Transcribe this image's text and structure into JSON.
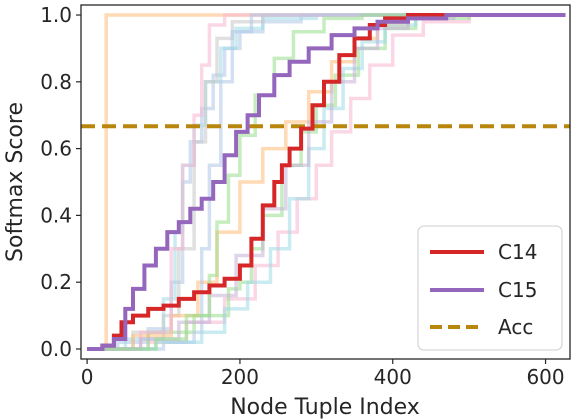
{
  "chart_data": {
    "type": "line",
    "xlabel": "Node Tuple Index",
    "ylabel": "Softmax Score",
    "xlim": [
      -8,
      632
    ],
    "ylim": [
      -0.03,
      1.03
    ],
    "xticks": [
      "0",
      "200",
      "400",
      "600"
    ],
    "xtick_values": [
      0,
      200,
      400,
      600
    ],
    "yticks": [
      "0.0",
      "0.2",
      "0.4",
      "0.6",
      "0.8",
      "1.0"
    ],
    "ytick_values": [
      0,
      0.2,
      0.4,
      0.6,
      0.8,
      1.0
    ],
    "legend_position": "lower-right",
    "accuracy_line": {
      "name": "Acc",
      "y": 0.667,
      "color": "#b8860b"
    },
    "series": [
      {
        "name": "C14",
        "color": "#d62728",
        "points": [
          [
            0,
            0
          ],
          [
            20,
            0.01
          ],
          [
            35,
            0.04
          ],
          [
            45,
            0.08
          ],
          [
            60,
            0.1
          ],
          [
            80,
            0.12
          ],
          [
            100,
            0.13
          ],
          [
            120,
            0.15
          ],
          [
            140,
            0.17
          ],
          [
            160,
            0.19
          ],
          [
            180,
            0.21
          ],
          [
            200,
            0.25
          ],
          [
            215,
            0.33
          ],
          [
            230,
            0.43
          ],
          [
            245,
            0.5
          ],
          [
            255,
            0.55
          ],
          [
            265,
            0.6
          ],
          [
            280,
            0.66
          ],
          [
            295,
            0.73
          ],
          [
            310,
            0.8
          ],
          [
            330,
            0.88
          ],
          [
            350,
            0.93
          ],
          [
            370,
            0.97
          ],
          [
            390,
            0.99
          ],
          [
            420,
            1.0
          ],
          [
            626,
            1.0
          ]
        ]
      },
      {
        "name": "C15",
        "color": "#9467bd",
        "points": [
          [
            0,
            0
          ],
          [
            20,
            0.01
          ],
          [
            35,
            0.03
          ],
          [
            50,
            0.12
          ],
          [
            60,
            0.18
          ],
          [
            75,
            0.25
          ],
          [
            90,
            0.3
          ],
          [
            105,
            0.35
          ],
          [
            120,
            0.38
          ],
          [
            135,
            0.42
          ],
          [
            150,
            0.45
          ],
          [
            165,
            0.5
          ],
          [
            180,
            0.58
          ],
          [
            195,
            0.65
          ],
          [
            210,
            0.7
          ],
          [
            225,
            0.76
          ],
          [
            245,
            0.82
          ],
          [
            265,
            0.86
          ],
          [
            290,
            0.9
          ],
          [
            320,
            0.94
          ],
          [
            350,
            0.96
          ],
          [
            380,
            0.98
          ],
          [
            420,
            0.99
          ],
          [
            470,
            1.0
          ],
          [
            626,
            1.0
          ]
        ]
      },
      {
        "name": "",
        "color": "#ffbb78",
        "points": [
          [
            0,
            0
          ],
          [
            20,
            0.01
          ],
          [
            25,
            0.01
          ],
          [
            25,
            1.0
          ],
          [
            626,
            1.0
          ]
        ]
      },
      {
        "name": "",
        "color": "#aec7e8",
        "points": [
          [
            0,
            0
          ],
          [
            40,
            0.02
          ],
          [
            80,
            0.06
          ],
          [
            110,
            0.2
          ],
          [
            125,
            0.5
          ],
          [
            135,
            0.62
          ],
          [
            150,
            0.72
          ],
          [
            165,
            0.82
          ],
          [
            180,
            0.9
          ],
          [
            200,
            0.95
          ],
          [
            230,
            0.98
          ],
          [
            280,
            1.0
          ],
          [
            626,
            1.0
          ]
        ]
      },
      {
        "name": "",
        "color": "#9edae5",
        "points": [
          [
            0,
            0
          ],
          [
            50,
            0.03
          ],
          [
            100,
            0.15
          ],
          [
            115,
            0.35
          ],
          [
            125,
            0.55
          ],
          [
            140,
            0.67
          ],
          [
            155,
            0.8
          ],
          [
            175,
            0.9
          ],
          [
            195,
            0.96
          ],
          [
            230,
            0.99
          ],
          [
            300,
            1.0
          ],
          [
            626,
            1.0
          ]
        ]
      },
      {
        "name": "",
        "color": "#f7b6d2",
        "points": [
          [
            0,
            0
          ],
          [
            80,
            0.02
          ],
          [
            130,
            0.08
          ],
          [
            180,
            0.15
          ],
          [
            220,
            0.25
          ],
          [
            250,
            0.35
          ],
          [
            275,
            0.45
          ],
          [
            300,
            0.55
          ],
          [
            320,
            0.65
          ],
          [
            345,
            0.75
          ],
          [
            370,
            0.85
          ],
          [
            400,
            0.94
          ],
          [
            440,
            0.98
          ],
          [
            500,
            1.0
          ],
          [
            626,
            1.0
          ]
        ]
      },
      {
        "name": "",
        "color": "#98df8a",
        "points": [
          [
            0,
            0
          ],
          [
            80,
            0.05
          ],
          [
            140,
            0.1
          ],
          [
            185,
            0.18
          ],
          [
            200,
            0.2
          ],
          [
            215,
            0.3
          ],
          [
            230,
            0.4
          ],
          [
            255,
            0.55
          ],
          [
            280,
            0.65
          ],
          [
            300,
            0.73
          ],
          [
            325,
            0.82
          ],
          [
            355,
            0.9
          ],
          [
            390,
            0.96
          ],
          [
            430,
            0.99
          ],
          [
            500,
            1.0
          ],
          [
            626,
            1.0
          ]
        ]
      },
      {
        "name": "",
        "color": "#c7c7c7",
        "points": [
          [
            0,
            0
          ],
          [
            60,
            0.05
          ],
          [
            100,
            0.1
          ],
          [
            120,
            0.3
          ],
          [
            140,
            0.62
          ],
          [
            155,
            0.8
          ],
          [
            170,
            0.93
          ],
          [
            190,
            0.98
          ],
          [
            230,
            1.0
          ],
          [
            626,
            1.0
          ]
        ]
      },
      {
        "name": "",
        "color": "#ffbb78",
        "points": [
          [
            0,
            0
          ],
          [
            60,
            0.04
          ],
          [
            110,
            0.1
          ],
          [
            145,
            0.2
          ],
          [
            170,
            0.35
          ],
          [
            200,
            0.5
          ],
          [
            230,
            0.6
          ],
          [
            260,
            0.68
          ],
          [
            290,
            0.77
          ],
          [
            320,
            0.86
          ],
          [
            350,
            0.93
          ],
          [
            380,
            0.97
          ],
          [
            420,
            1.0
          ],
          [
            626,
            1.0
          ]
        ]
      },
      {
        "name": "",
        "color": "#f7b6d2",
        "points": [
          [
            0,
            0
          ],
          [
            70,
            0.05
          ],
          [
            110,
            0.3
          ],
          [
            125,
            0.55
          ],
          [
            140,
            0.7
          ],
          [
            150,
            0.85
          ],
          [
            160,
            0.97
          ],
          [
            180,
            1.0
          ],
          [
            626,
            1.0
          ]
        ]
      },
      {
        "name": "",
        "color": "#aec7e8",
        "points": [
          [
            0,
            0
          ],
          [
            100,
            0.02
          ],
          [
            140,
            0.05
          ],
          [
            150,
            0.3
          ],
          [
            160,
            0.55
          ],
          [
            175,
            0.8
          ],
          [
            190,
            0.95
          ],
          [
            215,
            1.0
          ],
          [
            626,
            1.0
          ]
        ]
      },
      {
        "name": "",
        "color": "#9edae5",
        "points": [
          [
            0,
            0
          ],
          [
            90,
            0.02
          ],
          [
            150,
            0.05
          ],
          [
            180,
            0.12
          ],
          [
            210,
            0.2
          ],
          [
            240,
            0.3
          ],
          [
            265,
            0.45
          ],
          [
            290,
            0.6
          ],
          [
            310,
            0.72
          ],
          [
            335,
            0.84
          ],
          [
            360,
            0.92
          ],
          [
            390,
            0.97
          ],
          [
            430,
            1.0
          ],
          [
            626,
            1.0
          ]
        ]
      },
      {
        "name": "",
        "color": "#c5b0d5",
        "points": [
          [
            0,
            0
          ],
          [
            70,
            0.03
          ],
          [
            120,
            0.08
          ],
          [
            160,
            0.16
          ],
          [
            195,
            0.28
          ],
          [
            230,
            0.42
          ],
          [
            260,
            0.55
          ],
          [
            290,
            0.68
          ],
          [
            320,
            0.8
          ],
          [
            350,
            0.9
          ],
          [
            380,
            0.96
          ],
          [
            420,
            0.99
          ],
          [
            480,
            1.0
          ],
          [
            626,
            1.0
          ]
        ]
      },
      {
        "name": "",
        "color": "#98df8a",
        "points": [
          [
            0,
            0
          ],
          [
            90,
            0.03
          ],
          [
            130,
            0.1
          ],
          [
            160,
            0.22
          ],
          [
            170,
            0.38
          ],
          [
            185,
            0.52
          ],
          [
            200,
            0.64
          ],
          [
            220,
            0.76
          ],
          [
            245,
            0.87
          ],
          [
            270,
            0.95
          ],
          [
            310,
            0.99
          ],
          [
            360,
            1.0
          ],
          [
            626,
            1.0
          ]
        ]
      }
    ]
  }
}
